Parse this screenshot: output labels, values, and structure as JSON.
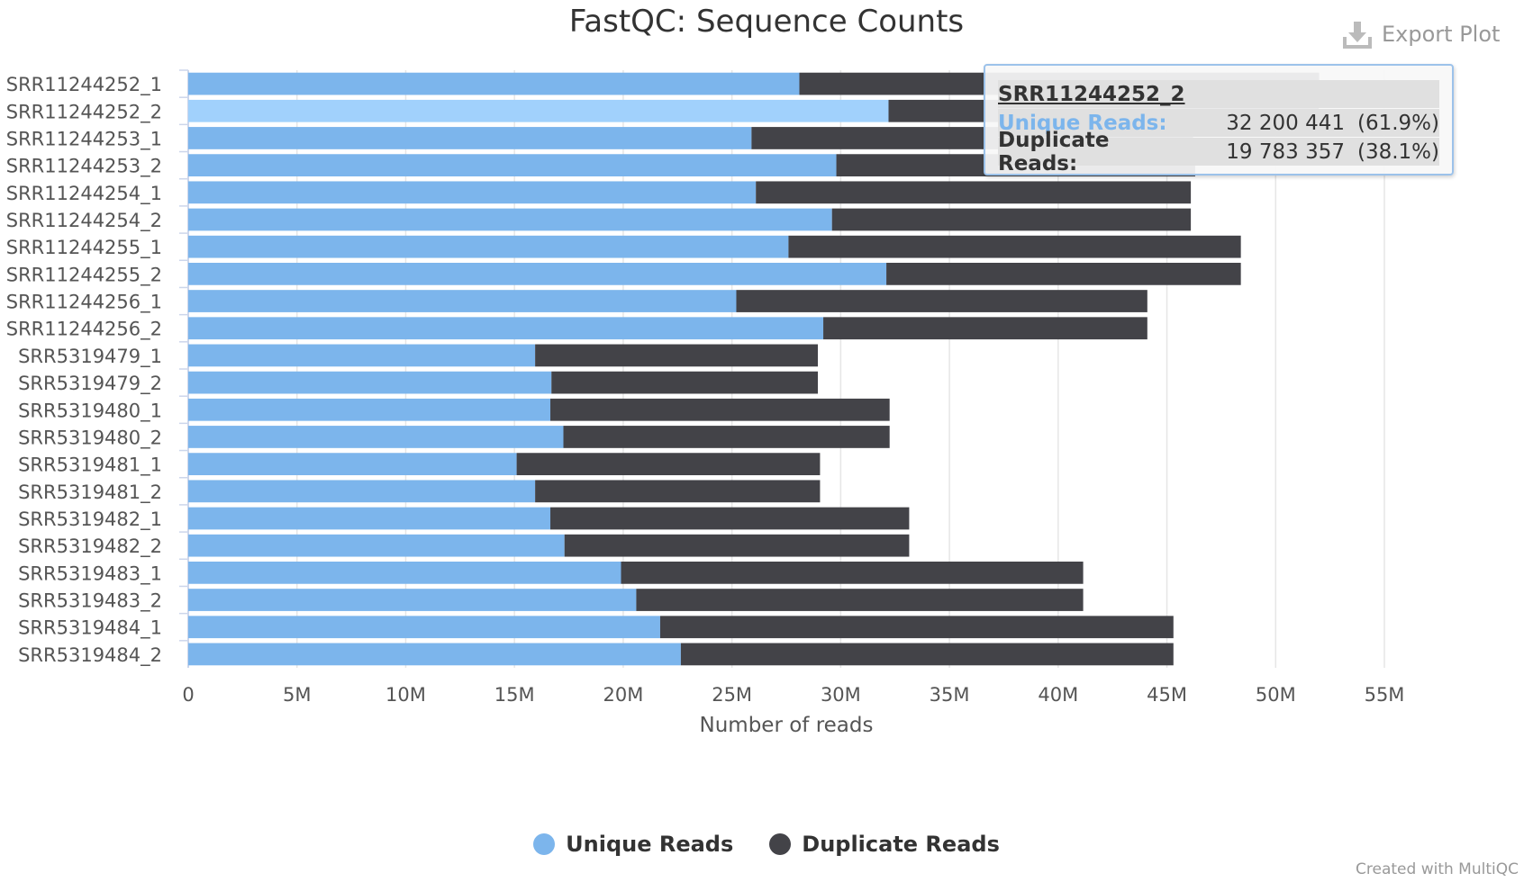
{
  "title": "FastQC: Sequence Counts",
  "export_label": "Export Plot",
  "credits": "Created with MultiQC",
  "colors": {
    "unique": "#7cb5ec",
    "unique_hover": "#a1d1fc",
    "duplicate": "#434348",
    "axis_text": "#555555",
    "grid": "#e6e6e6"
  },
  "chart_data": {
    "type": "bar",
    "orientation": "horizontal",
    "stacked": true,
    "title": "FastQC: Sequence Counts",
    "xlabel": "Number of reads",
    "ylabel": "",
    "xlim": [
      0,
      55000000
    ],
    "x_ticks": [
      0,
      5000000,
      10000000,
      15000000,
      20000000,
      25000000,
      30000000,
      35000000,
      40000000,
      45000000,
      50000000,
      55000000
    ],
    "x_tick_labels": [
      "0",
      "5M",
      "10M",
      "15M",
      "20M",
      "25M",
      "30M",
      "35M",
      "40M",
      "45M",
      "50M",
      "55M"
    ],
    "grid": true,
    "legend_position": "bottom",
    "categories": [
      "SRR11244252_1",
      "SRR11244252_2",
      "SRR11244253_1",
      "SRR11244253_2",
      "SRR11244254_1",
      "SRR11244254_2",
      "SRR11244255_1",
      "SRR11244255_2",
      "SRR11244256_1",
      "SRR11244256_2",
      "SRR5319479_1",
      "SRR5319479_2",
      "SRR5319480_1",
      "SRR5319480_2",
      "SRR5319481_1",
      "SRR5319481_2",
      "SRR5319482_1",
      "SRR5319482_2",
      "SRR5319483_1",
      "SRR5319483_2",
      "SRR5319484_1",
      "SRR5319484_2"
    ],
    "series": [
      {
        "name": "Unique Reads",
        "values": [
          28100000,
          32200441,
          25900000,
          29800000,
          26100000,
          29600000,
          27600000,
          32100000,
          25200000,
          29200000,
          15950000,
          16700000,
          16650000,
          17250000,
          15100000,
          15950000,
          16650000,
          17300000,
          19900000,
          20600000,
          21700000,
          22650000
        ]
      },
      {
        "name": "Duplicate Reads",
        "values": [
          23900000,
          19783357,
          20300000,
          16500000,
          20000000,
          16500000,
          20800000,
          16300000,
          18900000,
          14900000,
          13000000,
          12250000,
          15600000,
          15000000,
          13950000,
          13100000,
          16500000,
          15850000,
          21250000,
          20550000,
          23600000,
          22650000
        ]
      }
    ],
    "highlighted_category": "SRR11244252_2"
  },
  "tooltip": {
    "sample": "SRR11244252_2",
    "rows": [
      {
        "label": "Unique Reads:",
        "value": "32 200 441",
        "pct": "(61.9%)",
        "color": "#7cb5ec"
      },
      {
        "label": "Duplicate Reads:",
        "value": "19 783 357",
        "pct": "(38.1%)",
        "color": "#333333"
      }
    ]
  }
}
